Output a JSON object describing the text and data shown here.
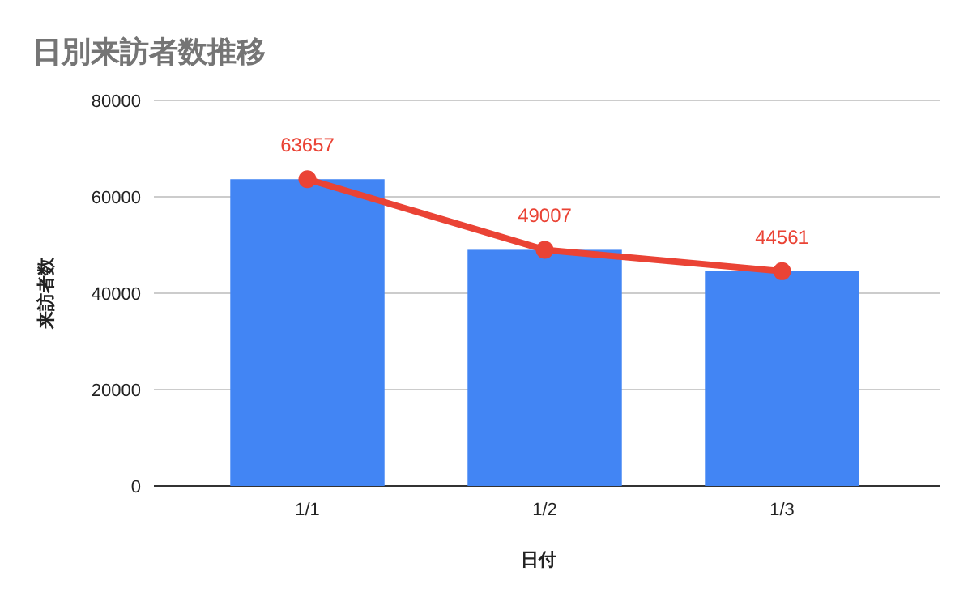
{
  "chart_data": {
    "type": "bar",
    "title": "日別来訪者数推移",
    "xlabel": "日付",
    "ylabel": "来訪者数",
    "categories": [
      "1/1",
      "1/2",
      "1/3"
    ],
    "series": [
      {
        "color": "#4285f4",
        "values": [
          63657,
          49007,
          44561
        ]
      },
      {
        "type": "line",
        "color": "#ea4335",
        "values": [
          63657,
          49007,
          44561
        ],
        "marker": "circle",
        "value_labels": [
          "63657",
          "49007",
          "44561"
        ]
      }
    ],
    "ylim": [
      0,
      80000
    ],
    "yticks": [
      0,
      20000,
      40000,
      60000,
      80000
    ],
    "grid": "y"
  }
}
